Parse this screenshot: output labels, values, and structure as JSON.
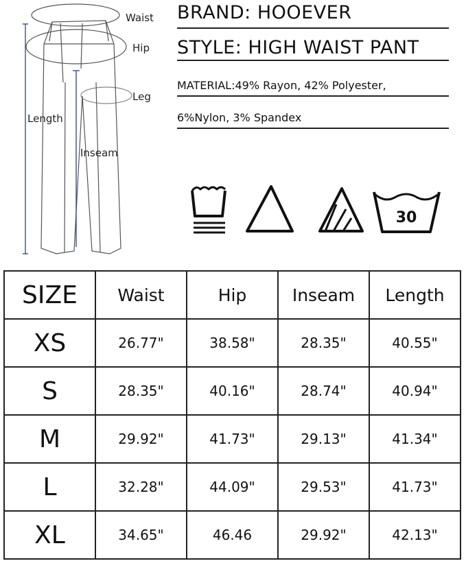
{
  "diagram": {
    "labels": {
      "waist": "Waist",
      "hip": "Hip",
      "leg": "Leg",
      "length": "Length",
      "inseam": "Inseam"
    }
  },
  "info": {
    "brand": "BRAND: HOOEVER",
    "style": "STYLE: HIGH WAIST PANT",
    "material_line1": "MATERIAL:49% Rayon, 42% Polyester,",
    "material_line2": "6%Nylon, 3% Spandex"
  },
  "care_icons": [
    {
      "icon": "hand-wash-icon"
    },
    {
      "icon": "bleach-allowed-icon"
    },
    {
      "icon": "non-chlorine-bleach-icon"
    },
    {
      "icon": "machine-wash-30-icon",
      "text": "30"
    }
  ],
  "size_table": {
    "headers": [
      "SIZE",
      "Waist",
      "Hip",
      "Inseam",
      "Length"
    ],
    "rows": [
      [
        "XS",
        "26.77\"",
        "38.58\"",
        "28.35\"",
        "40.55\""
      ],
      [
        "S",
        "28.35\"",
        "40.16\"",
        "28.74\"",
        "40.94\""
      ],
      [
        "M",
        "29.92\"",
        "41.73\"",
        "29.13\"",
        "41.34\""
      ],
      [
        "L",
        "32.28\"",
        "44.09\"",
        "29.53\"",
        "41.73\""
      ],
      [
        "XL",
        "34.65\"",
        "46.46",
        "29.92\"",
        "42.13\""
      ]
    ]
  }
}
